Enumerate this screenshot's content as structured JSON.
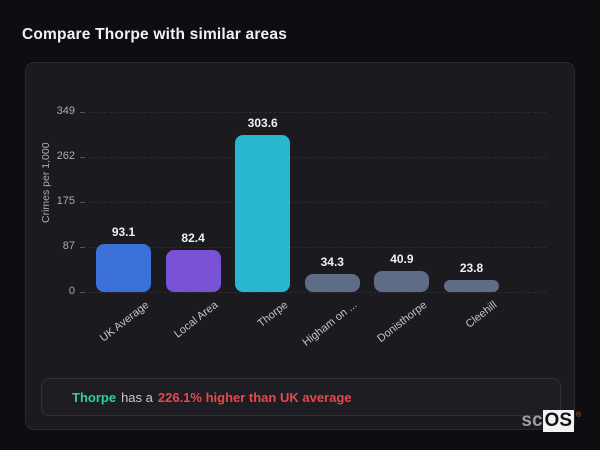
{
  "page_title": "Compare Thorpe with similar areas",
  "chart_data": {
    "type": "bar",
    "title": "",
    "categories": [
      "UK Average",
      "Local Area",
      "Thorpe",
      "Higham on ...",
      "Donisthorpe",
      "Cleehill"
    ],
    "values": [
      93.1,
      82.4,
      303.6,
      34.3,
      40.9,
      23.8
    ],
    "value_labels": [
      "93.1",
      "82.4",
      "303.6",
      "34.3",
      "40.9",
      "23.8"
    ],
    "bar_colors": [
      "#3b70d9",
      "#7a52d6",
      "#27b7cf",
      "#5e6c86",
      "#5e6c86",
      "#5e6c86"
    ],
    "xlabel": "",
    "ylabel": "Crimes per 1,000",
    "yticks": [
      0,
      87,
      175,
      262,
      349
    ],
    "ylim": [
      0,
      349
    ],
    "grid": "dashed-horizontal",
    "legend": "none"
  },
  "footer_note": {
    "area_name": "Thorpe",
    "middle_text": "has a",
    "highlight_text": "226.1% higher than UK average",
    "area_color": "#2fd0a0",
    "highlight_color": "#e84848"
  },
  "logo": {
    "prefix": "sc",
    "suffix": "OS",
    "registered_mark": "®"
  },
  "colors": {
    "page_background": "#0e0e12",
    "card_background": "#1a1a1f",
    "accent_cyan": "#27b7cf",
    "accent_blue": "#3b70d9",
    "accent_purple": "#7a52d6",
    "neutral_slate": "#5e6c86",
    "positive_green": "#2fd0a0",
    "negative_red": "#e84848"
  }
}
